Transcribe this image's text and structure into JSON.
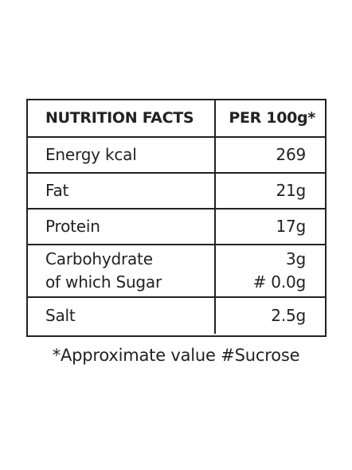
{
  "table": {
    "header": {
      "label": "NUTRITION FACTS",
      "value": "PER 100g*"
    },
    "rows": [
      {
        "label": "Energy kcal",
        "value": "269"
      },
      {
        "label": "Fat",
        "value": "21g"
      },
      {
        "label": "Protein",
        "value": "17g"
      },
      {
        "label": "Carbohydrate",
        "sub_label": "of which Sugar",
        "value": "3g",
        "sub_value": "# 0.0g"
      },
      {
        "label": "Salt",
        "value": "2.5g"
      }
    ]
  },
  "footnote": "*Approximate value #Sucrose"
}
